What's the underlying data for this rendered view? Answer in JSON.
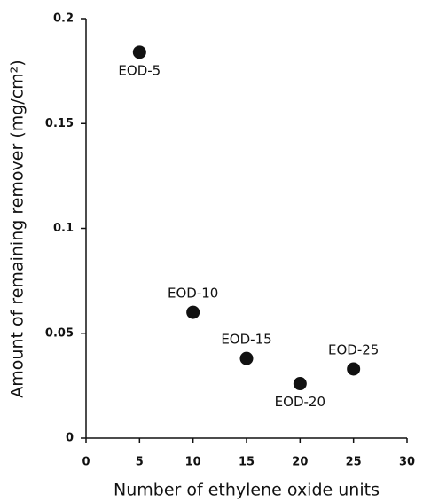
{
  "chart_data": {
    "type": "scatter",
    "xlabel": "Number of ethylene oxide units",
    "ylabel": "Amount of remaining remover (mg/cm²)",
    "x": [
      5,
      10,
      15,
      20,
      25
    ],
    "series": [
      {
        "color": "#111111",
        "values": [
          0.184,
          0.06,
          0.038,
          0.026,
          0.033
        ]
      }
    ],
    "point_labels": [
      "EOD-5",
      "EOD-10",
      "EOD-15",
      "EOD-20",
      "EOD-25"
    ],
    "xlim": [
      0,
      30
    ],
    "xticks": [
      0,
      5,
      10,
      15,
      20,
      25,
      30
    ],
    "ylim": [
      0,
      0.2
    ],
    "yticks": [
      0,
      0.05,
      0.1,
      0.15,
      0.2
    ]
  }
}
